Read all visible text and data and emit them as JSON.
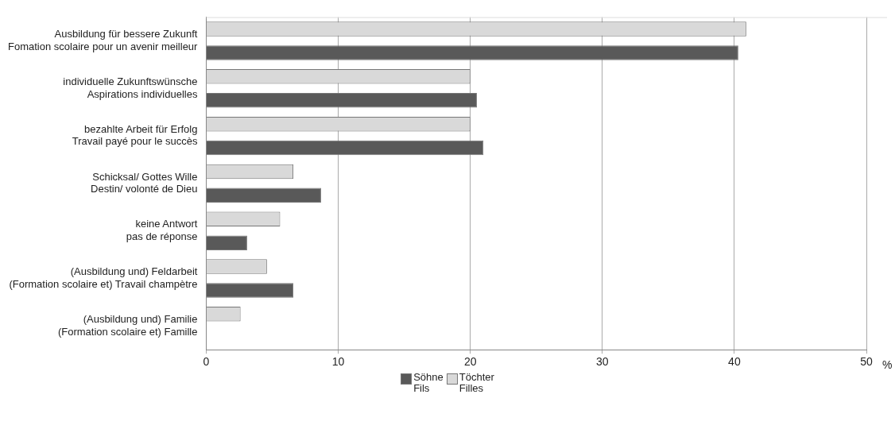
{
  "chart_data": {
    "type": "bar",
    "orientation": "horizontal",
    "categories": [
      "Ausbildung für bessere Zukunft\nFomation scolaire pour un avenir meilleur",
      "individuelle Zukunftswünsche\nAspirations individuelles",
      "bezahlte Arbeit für Erfolg\nTravail payé pour le succès",
      "Schicksal/ Gottes Wille\nDestin/ volonté de Dieu",
      "keine Antwort\npas de réponse",
      "(Ausbildung und) Feldarbeit\n(Formation scolaire et) Travail champètre",
      "(Ausbildung und) Familie\n(Formation scolaire et) Famille"
    ],
    "series": [
      {
        "name": "Söhne\nFils",
        "color": "#595959",
        "values": [
          40.3,
          20.5,
          21.0,
          8.7,
          3.1,
          6.6,
          null
        ]
      },
      {
        "name": "Töchter\nFilles",
        "color": "#d9d9d9",
        "values": [
          40.9,
          20.0,
          20.0,
          6.6,
          5.6,
          4.6,
          2.6
        ]
      }
    ],
    "xlabel": "%",
    "xlim": [
      0,
      50
    ],
    "xticks": [
      0,
      10,
      20,
      30,
      40,
      50
    ],
    "grid": "x",
    "legend": "bottom"
  }
}
